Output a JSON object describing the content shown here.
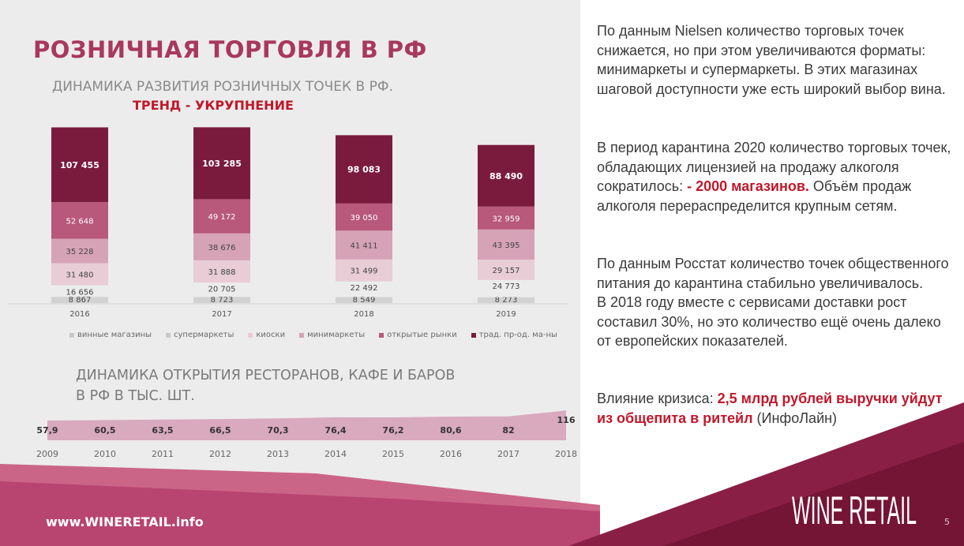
{
  "title": "РОЗНИЧНАЯ ТОРГОВЛЯ В РФ",
  "chart1": {
    "subtitle": "ДИНАМИКА РАЗВИТИЯ РОЗНИЧНЫХ ТОЧЕК В РФ.",
    "trend": "ТРЕНД - УКРУПНЕНИЕ"
  },
  "chart2": {
    "subtitle_line1": "ДИНАМИКА ОТКРЫТИЯ РЕСТОРАНОВ, КАФЕ И БАРОВ",
    "subtitle_line2": "В РФ В ТЫС. ШТ."
  },
  "chart_data": [
    {
      "type": "bar",
      "stacked": true,
      "categories": [
        "2016",
        "2017",
        "2018",
        "2019"
      ],
      "series": [
        {
          "name": "винные магазины",
          "color": "#d2d2d2",
          "values": [
            8867,
            8723,
            8549,
            8273
          ],
          "labels": [
            "8 867",
            "8 723",
            "8 549",
            "8 273"
          ]
        },
        {
          "name": "супермаркеты",
          "color": "#ececec",
          "values": [
            16656,
            20705,
            22492,
            24773
          ],
          "labels": [
            "16 656",
            "20 705",
            "22 492",
            "24 773"
          ]
        },
        {
          "name": "киоски",
          "color": "#e8ccd6",
          "values": [
            31480,
            31888,
            31499,
            29157
          ],
          "labels": [
            "31 480",
            "31 888",
            "31 499",
            "29 157"
          ]
        },
        {
          "name": "минимаркеты",
          "color": "#d6a3b6",
          "values": [
            35228,
            38676,
            41411,
            43395
          ],
          "labels": [
            "35 228",
            "38 676",
            "41 411",
            "43 395"
          ]
        },
        {
          "name": "открытые рынки",
          "color": "#b8587a",
          "values": [
            52648,
            49172,
            39050,
            32959
          ],
          "labels": [
            "52 648",
            "49 172",
            "39 050",
            "32 959"
          ]
        },
        {
          "name": "трад. пр-од. ма-ны",
          "color": "#7a1b3d",
          "values": [
            107455,
            103285,
            98083,
            88490
          ],
          "labels": [
            "107 455",
            "103 285",
            "98 083",
            "88 490"
          ]
        }
      ]
    },
    {
      "type": "area",
      "x": [
        "2009",
        "2010",
        "2011",
        "2012",
        "2013",
        "2014",
        "2015",
        "2016",
        "2017",
        "2018"
      ],
      "values": [
        57.9,
        60.5,
        63.5,
        66.5,
        70.3,
        76.4,
        76.2,
        80.6,
        82,
        116
      ],
      "labels": [
        "57,9",
        "60,5",
        "63,5",
        "66,5",
        "70,3",
        "76,4",
        "76,2",
        "80,6",
        "82",
        "116"
      ],
      "color": "#d9a9be"
    }
  ],
  "right_panel": {
    "p1": "По данным Nielsen количество торговых точек снижается, но при этом увеличиваются форматы: минимаркеты и супермаркеты. В этих магазинах шаговой доступности уже есть широкий выбор вина.",
    "p2_a": "В период карантина 2020 количество торговых точек, обладающих лицензией на продажу алкоголя сократилось: ",
    "p2_red": "- 2000 магазинов.",
    "p2_b": " Объём продаж алкоголя перераспределится крупным сетям.",
    "p3": "По данным Росстат количество точек общественного питания до карантина стабильно увеличивалось.",
    "p3b": "В 2018 году вместе с сервисами доставки рост составил 30%, но это количество ещё очень далеко от европейских показателей.",
    "p4_a": "Влияние кризиса: ",
    "p4_red": "2,5 млрд рублей выручки уйдут из общепита в ритейл",
    "p4_b": " (ИнфоЛайн)"
  },
  "footer": {
    "url": "www.WINERETAIL.info",
    "logo": "WINE RETAIL",
    "page": "5"
  },
  "colors": {
    "brand": "#a8385e",
    "accent_red": "#c0182b",
    "dark_wine": "#7a1b3d"
  }
}
